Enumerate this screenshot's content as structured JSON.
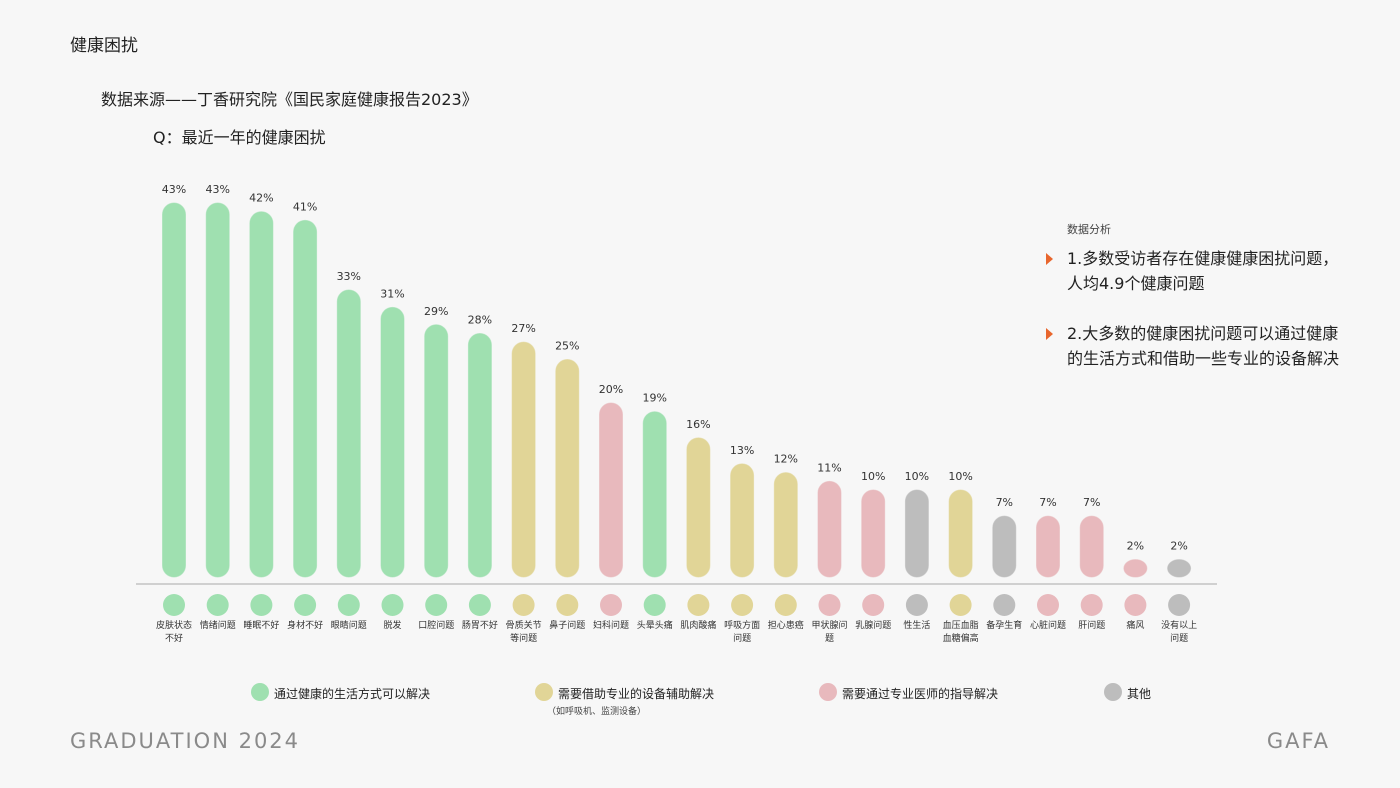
{
  "page": {
    "title": "健康困扰",
    "source": "数据来源——丁香研究院《国民家庭健康报告2023》",
    "question": "Q：最近一年的健康困扰"
  },
  "colors": {
    "green": "#9fe0b0",
    "yellow": "#e1d597",
    "pink": "#e8b9bd",
    "gray": "#bdbdbd",
    "accent": "#e8662d"
  },
  "chart_data": {
    "type": "bar",
    "title": "Q：最近一年的健康困扰",
    "xlabel": "",
    "ylabel": "",
    "ylim": [
      0,
      43
    ],
    "value_suffix": "%",
    "categories": [
      "皮肤状态不好",
      "情绪问题",
      "睡眠不好",
      "身材不好",
      "眼睛问题",
      "脱发",
      "口腔问题",
      "肠胃不好",
      "骨质关节等问题",
      "鼻子问题",
      "妇科问题",
      "头晕头痛",
      "肌肉酸痛",
      "呼吸方面问题",
      "担心患癌",
      "甲状腺问题",
      "乳腺问题",
      "性生活",
      "血压血脂血糖偏高",
      "备孕生育",
      "心脏问题",
      "肝问题",
      "痛风",
      "没有以上问题"
    ],
    "category_lines": [
      [
        "皮肤状态",
        "不好"
      ],
      [
        "情绪问题"
      ],
      [
        "睡眠不好"
      ],
      [
        "身材不好"
      ],
      [
        "眼睛问题"
      ],
      [
        "脱发"
      ],
      [
        "口腔问题"
      ],
      [
        "肠胃不好"
      ],
      [
        "骨质关节",
        "等问题"
      ],
      [
        "鼻子问题"
      ],
      [
        "妇科问题"
      ],
      [
        "头晕头痛"
      ],
      [
        "肌肉酸痛"
      ],
      [
        "呼吸方面",
        "问题"
      ],
      [
        "担心患癌"
      ],
      [
        "甲状腺问",
        "题"
      ],
      [
        "乳腺问题"
      ],
      [
        "性生活"
      ],
      [
        "血压血脂",
        "血糖偏高"
      ],
      [
        "备孕生育"
      ],
      [
        "心脏问题"
      ],
      [
        "肝问题"
      ],
      [
        "痛风"
      ],
      [
        "没有以上",
        "问题"
      ]
    ],
    "values": [
      43,
      43,
      42,
      41,
      33,
      31,
      29,
      28,
      27,
      25,
      20,
      19,
      16,
      13,
      12,
      11,
      10,
      10,
      10,
      7,
      7,
      7,
      2,
      2
    ],
    "groups": [
      "green",
      "green",
      "green",
      "green",
      "green",
      "green",
      "green",
      "green",
      "yellow",
      "yellow",
      "pink",
      "green",
      "yellow",
      "yellow",
      "yellow",
      "pink",
      "pink",
      "gray",
      "yellow",
      "gray",
      "pink",
      "pink",
      "pink",
      "gray"
    ],
    "legend": [
      {
        "key": "green",
        "label": "通过健康的生活方式可以解决",
        "sub": ""
      },
      {
        "key": "yellow",
        "label": "需要借助专业的设备辅助解决",
        "sub": "（如呼吸机、监测设备）"
      },
      {
        "key": "pink",
        "label": "需要通过专业医师的指导解决",
        "sub": ""
      },
      {
        "key": "gray",
        "label": "其他",
        "sub": ""
      }
    ]
  },
  "analysis": {
    "heading": "数据分析",
    "points": [
      "1.多数受访者存在健康健康困扰问题，人均4.9个健康问题",
      "2.大多数的健康困扰问题可以通过健康的生活方式和借助一些专业的设备解决"
    ]
  },
  "footer": {
    "left": "GRADUATION 2024",
    "right": "GAFA"
  }
}
